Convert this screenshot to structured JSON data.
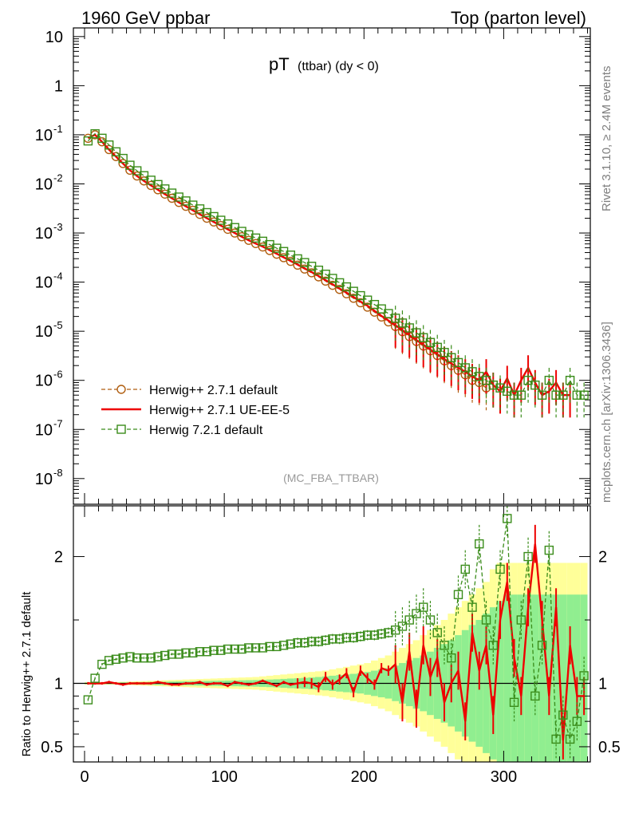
{
  "header": {
    "left": "1960 GeV ppbar",
    "right": "Top (parton level)",
    "side_rivet": "Rivet 3.1.10, ≥ 2.4M events",
    "side_mcplots": "mcplots.cern.ch [arXiv:1306.3436]",
    "analysis_tag": "(MC_FBA_TTBAR)"
  },
  "colors": {
    "herwigpp_default": "#b05e10",
    "herwigpp_ueee5": "#ee0000",
    "herwig7": "#3a8c1a",
    "band_yellow": "#ffff99",
    "band_green": "#90ee90"
  },
  "chart_data": [
    {
      "type": "line",
      "title": "pT",
      "title_sub": "(ttbar) (dy < 0)",
      "xlabel": "",
      "ylabel": "",
      "yscale": "log",
      "xlim": [
        -8,
        362
      ],
      "ylim": [
        3e-09,
        15
      ],
      "yticks": [
        {
          "value": 10,
          "label": "10"
        },
        {
          "value": 1,
          "label": "1"
        },
        {
          "base": "10",
          "exp": "-1",
          "value": 0.1
        },
        {
          "base": "10",
          "exp": "-2",
          "value": 0.01
        },
        {
          "base": "10",
          "exp": "-3",
          "value": 0.001
        },
        {
          "base": "10",
          "exp": "-4",
          "value": 0.0001
        },
        {
          "base": "10",
          "exp": "-5",
          "value": 1e-05
        },
        {
          "base": "10",
          "exp": "-6",
          "value": 1e-06
        },
        {
          "base": "10",
          "exp": "-7",
          "value": 1e-07
        },
        {
          "base": "10",
          "exp": "-8",
          "value": 1e-08
        }
      ],
      "x": [
        2.5,
        7.5,
        12.5,
        17.5,
        22.5,
        27.5,
        32.5,
        37.5,
        42.5,
        47.5,
        52.5,
        57.5,
        62.5,
        67.5,
        72.5,
        77.5,
        82.5,
        87.5,
        92.5,
        97.5,
        102.5,
        107.5,
        112.5,
        117.5,
        122.5,
        127.5,
        132.5,
        137.5,
        142.5,
        147.5,
        152.5,
        157.5,
        162.5,
        167.5,
        172.5,
        177.5,
        182.5,
        187.5,
        192.5,
        197.5,
        202.5,
        207.5,
        212.5,
        217.5,
        222.5,
        227.5,
        232.5,
        237.5,
        242.5,
        247.5,
        252.5,
        257.5,
        262.5,
        267.5,
        272.5,
        277.5,
        282.5,
        287.5,
        292.5,
        297.5,
        302.5,
        307.5,
        312.5,
        317.5,
        322.5,
        327.5,
        332.5,
        337.5,
        342.5,
        347.5,
        352.5,
        357.5
      ],
      "series": [
        {
          "name": "Herwig++ 2.7.1 default",
          "style": "dashed-circle",
          "values": [
            0.085,
            0.1,
            0.072,
            0.05,
            0.036,
            0.026,
            0.019,
            0.0145,
            0.0115,
            0.0093,
            0.0076,
            0.0062,
            0.0051,
            0.0042,
            0.0035,
            0.0029,
            0.0024,
            0.002,
            0.00168,
            0.00142,
            0.00119,
            0.001,
            0.00084,
            0.00071,
            0.00061,
            0.00052,
            0.00044,
            0.00037,
            0.000315,
            0.000265,
            0.000222,
            0.000185,
            0.000155,
            0.000128,
            0.000105,
            8.6e-05,
            7.1e-05,
            5.8e-05,
            4.7e-05,
            3.8e-05,
            3.1e-05,
            2.45e-05,
            1.95e-05,
            1.55e-05,
            1.25e-05,
            9.8e-06,
            7.8e-06,
            6.2e-06,
            5e-06,
            4e-06,
            3.2e-06,
            2.5e-06,
            2e-06,
            1.6e-06,
            1.3e-06,
            1e-06,
            9e-07,
            7e-07,
            null,
            null,
            null,
            null,
            null,
            null,
            null,
            null,
            null,
            null,
            null,
            null,
            null,
            null
          ]
        },
        {
          "name": "Herwig++ 2.7.1 UE-EE-5",
          "style": "solid",
          "values": [
            0.086,
            0.1,
            0.072,
            0.05,
            0.036,
            0.026,
            0.019,
            0.0145,
            0.0115,
            0.0093,
            0.0076,
            0.0062,
            0.0051,
            0.0042,
            0.0035,
            0.0029,
            0.0024,
            0.002,
            0.00168,
            0.00142,
            0.00119,
            0.001,
            0.00084,
            0.00071,
            0.00061,
            0.00053,
            0.00045,
            0.00038,
            0.00032,
            0.00027,
            0.000228,
            0.00019,
            0.00016,
            0.000133,
            0.00011,
            9e-05,
            7.4e-05,
            6.1e-05,
            5e-05,
            4e-05,
            3.3e-05,
            2.6e-05,
            2.05e-05,
            1.65e-05,
            1.32e-05,
            1.05e-05,
            8.3e-06,
            6.6e-06,
            5.3e-06,
            4.2e-06,
            3.4e-06,
            2.7e-06,
            2.2e-06,
            1.8e-06,
            1.5e-06,
            1.2e-06,
            1e-06,
            1.5e-06,
            8e-07,
            6e-07,
            1.1e-06,
            5e-07,
            1e-06,
            1.8e-06,
            9e-07,
            5e-07,
            6e-07,
            9e-07,
            5e-07,
            5e-07,
            null,
            null
          ]
        },
        {
          "name": "Herwig 7.2.1 default",
          "style": "dashed-square",
          "values": [
            0.075,
            0.105,
            0.085,
            0.062,
            0.045,
            0.033,
            0.024,
            0.0185,
            0.0147,
            0.0119,
            0.0097,
            0.0079,
            0.0065,
            0.0054,
            0.0045,
            0.0037,
            0.0031,
            0.0026,
            0.00216,
            0.00182,
            0.00153,
            0.00129,
            0.00108,
            0.00092,
            0.00079,
            0.00068,
            0.00058,
            0.00049,
            0.00042,
            0.000355,
            0.000298,
            0.00025,
            0.00021,
            0.000175,
            0.000145,
            0.000119,
            9.7e-05,
            8e-05,
            6.5e-05,
            5.3e-05,
            4.3e-05,
            3.5e-05,
            2.85e-05,
            2.29e-05,
            1.84e-05,
            1.47e-05,
            1.17e-05,
            9.3e-06,
            7.4e-06,
            5.9e-06,
            4.7e-06,
            3.7e-06,
            2.9e-06,
            2.3e-06,
            1.8e-06,
            1.5e-06,
            1.2e-06,
            1e-06,
            8e-07,
            7e-07,
            6e-07,
            5e-07,
            5e-07,
            1e-06,
            8e-07,
            5e-07,
            1e-06,
            5e-07,
            5e-07,
            1e-06,
            5e-07,
            5e-07
          ]
        }
      ]
    },
    {
      "type": "line",
      "title": "",
      "xlabel": "",
      "ylabel": "Ratio to Herwig++ 2.7.1 default",
      "xlim": [
        -8,
        362
      ],
      "ylim": [
        0.38,
        2.4
      ],
      "yticks": [
        {
          "value": 2,
          "label": "2"
        },
        {
          "value": 1,
          "label": "1"
        },
        {
          "value": 0.5,
          "label": "0.5"
        }
      ],
      "xticks": [
        {
          "value": 0,
          "label": "0"
        },
        {
          "value": 100,
          "label": "100"
        },
        {
          "value": 200,
          "label": "200"
        },
        {
          "value": 300,
          "label": "300"
        }
      ],
      "x": [
        2.5,
        7.5,
        12.5,
        17.5,
        22.5,
        27.5,
        32.5,
        37.5,
        42.5,
        47.5,
        52.5,
        57.5,
        62.5,
        67.5,
        72.5,
        77.5,
        82.5,
        87.5,
        92.5,
        97.5,
        102.5,
        107.5,
        112.5,
        117.5,
        122.5,
        127.5,
        132.5,
        137.5,
        142.5,
        147.5,
        152.5,
        157.5,
        162.5,
        167.5,
        172.5,
        177.5,
        182.5,
        187.5,
        192.5,
        197.5,
        202.5,
        207.5,
        212.5,
        217.5,
        222.5,
        227.5,
        232.5,
        237.5,
        242.5,
        247.5,
        252.5,
        257.5,
        262.5,
        267.5,
        272.5,
        277.5,
        282.5,
        287.5,
        292.5,
        297.5,
        302.5,
        307.5,
        312.5,
        317.5,
        322.5,
        327.5,
        332.5,
        337.5,
        342.5,
        347.5,
        352.5,
        357.5
      ],
      "band_yellow": [
        0.01,
        0.01,
        0.01,
        0.01,
        0.01,
        0.012,
        0.014,
        0.016,
        0.018,
        0.02,
        0.022,
        0.024,
        0.026,
        0.028,
        0.03,
        0.032,
        0.034,
        0.036,
        0.038,
        0.04,
        0.042,
        0.044,
        0.046,
        0.048,
        0.05,
        0.055,
        0.06,
        0.065,
        0.07,
        0.075,
        0.08,
        0.085,
        0.09,
        0.095,
        0.1,
        0.11,
        0.12,
        0.13,
        0.14,
        0.15,
        0.16,
        0.18,
        0.2,
        0.22,
        0.25,
        0.28,
        0.31,
        0.34,
        0.38,
        0.42,
        0.46,
        0.5,
        0.55,
        0.6,
        0.65,
        0.7,
        0.75,
        0.8,
        0.9,
        0.95,
        0.95,
        0.95,
        0.95,
        0.95,
        0.95,
        0.95,
        0.95,
        0.95,
        0.95,
        0.95,
        0.95,
        0.95
      ],
      "band_green": [
        0.005,
        0.005,
        0.005,
        0.005,
        0.006,
        0.007,
        0.008,
        0.009,
        0.01,
        0.011,
        0.012,
        0.013,
        0.014,
        0.015,
        0.016,
        0.017,
        0.018,
        0.019,
        0.02,
        0.021,
        0.022,
        0.023,
        0.024,
        0.025,
        0.026,
        0.028,
        0.03,
        0.032,
        0.035,
        0.038,
        0.04,
        0.043,
        0.046,
        0.05,
        0.055,
        0.06,
        0.065,
        0.07,
        0.075,
        0.08,
        0.09,
        0.1,
        0.11,
        0.12,
        0.14,
        0.16,
        0.18,
        0.2,
        0.22,
        0.25,
        0.28,
        0.31,
        0.34,
        0.38,
        0.42,
        0.46,
        0.5,
        0.55,
        0.6,
        0.65,
        0.7,
        0.7,
        0.7,
        0.7,
        0.7,
        0.7,
        0.7,
        0.7,
        0.7,
        0.7,
        0.7,
        0.7
      ],
      "series": [
        {
          "name": "Herwig++ 2.7.1 UE-EE-5",
          "values": [
            1.0,
            1.0,
            1.0,
            1.01,
            1.0,
            0.99,
            1.0,
            1.0,
            1.0,
            1.0,
            1.01,
            1.0,
            0.99,
            0.99,
            1.0,
            1.0,
            1.01,
            0.99,
            1.0,
            1.0,
            0.98,
            1.01,
            1.0,
            0.99,
            1.0,
            1.02,
            1.0,
            0.98,
            1.01,
            0.99,
            1.0,
            1.01,
            1.0,
            0.97,
            1.05,
            0.99,
            1.03,
            1.08,
            0.93,
            1.1,
            1.04,
            0.99,
            1.12,
            1.1,
            1.15,
            0.85,
            1.25,
            0.8,
            1.3,
            1.05,
            1.2,
            0.85,
            1.0,
            1.1,
            0.7,
            1.4,
            1.1,
            1.3,
            0.75,
            1.5,
            1.8,
            1.2,
            0.9,
            1.6,
            2.1,
            1.5,
            0.9,
            1.6,
            0.55,
            1.3,
            0.9,
            0.9
          ]
        },
        {
          "name": "Herwig 7.2.1 default",
          "values": [
            0.87,
            1.04,
            1.15,
            1.18,
            1.19,
            1.2,
            1.21,
            1.2,
            1.2,
            1.2,
            1.21,
            1.22,
            1.23,
            1.23,
            1.24,
            1.24,
            1.25,
            1.25,
            1.26,
            1.26,
            1.27,
            1.27,
            1.27,
            1.28,
            1.28,
            1.28,
            1.29,
            1.29,
            1.3,
            1.31,
            1.32,
            1.32,
            1.33,
            1.33,
            1.34,
            1.35,
            1.35,
            1.36,
            1.36,
            1.37,
            1.38,
            1.38,
            1.39,
            1.4,
            1.42,
            1.45,
            1.5,
            1.55,
            1.6,
            1.5,
            1.4,
            1.3,
            1.2,
            1.7,
            1.9,
            1.6,
            2.1,
            1.5,
            1.3,
            1.9,
            2.3,
            0.85,
            1.5,
            2.0,
            0.9,
            1.3,
            2.05,
            0.56,
            0.75,
            0.56,
            0.7,
            1.06
          ]
        }
      ]
    }
  ]
}
